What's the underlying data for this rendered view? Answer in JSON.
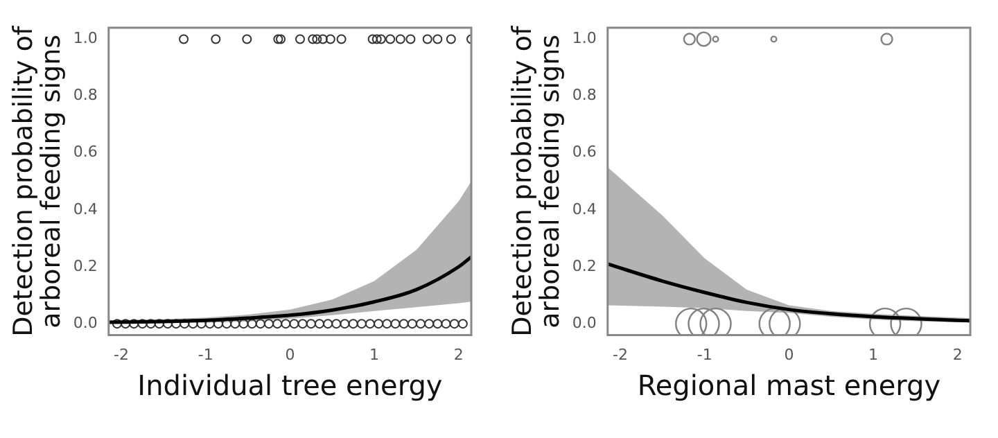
{
  "chart_data": [
    {
      "type": "line",
      "xlabel": "Individual tree energy",
      "ylabel": "Detection probability of arboreal feeding signs",
      "xlim": [
        -2.15,
        2.15
      ],
      "ylim": [
        -0.04,
        1.04
      ],
      "xticks": [
        -2,
        -1,
        0,
        1,
        2
      ],
      "yticks": [
        {
          "value": 0,
          "label": "0.0"
        },
        {
          "value": 0.2,
          "label": "0.2"
        },
        {
          "value": 0.4,
          "label": "0.4"
        },
        {
          "value": 0.6,
          "label": "0.6"
        },
        {
          "value": 0.8,
          "label": "0.8"
        },
        {
          "value": 1,
          "label": "1.0"
        }
      ],
      "grid": false,
      "legend": false,
      "series": [
        {
          "type": "line",
          "color": "#000000",
          "marker": "none",
          "x": [
            -2.15,
            -1.5,
            -1,
            -0.5,
            0,
            0.5,
            1,
            1.5,
            2,
            2.15
          ],
          "values": [
            0.005,
            0.008,
            0.012,
            0.02,
            0.03,
            0.048,
            0.077,
            0.12,
            0.2,
            0.235
          ],
          "lower": [
            0.001,
            0.002,
            0.004,
            0.008,
            0.018,
            0.03,
            0.045,
            0.058,
            0.072,
            0.078
          ],
          "upper": [
            0.012,
            0.016,
            0.022,
            0.032,
            0.05,
            0.085,
            0.15,
            0.26,
            0.43,
            0.5
          ]
        },
        {
          "type": "scatter",
          "color": "#333333",
          "marker": "circle",
          "x": [
            -1.26,
            -0.88,
            -0.51,
            -0.14,
            -0.11,
            0.12,
            0.27,
            0.32,
            0.39,
            0.48,
            0.61,
            0.98,
            1.03,
            1.08,
            1.19,
            1.31,
            1.43,
            1.63,
            1.75,
            1.91,
            2.15,
            -2.05,
            -1.95,
            -1.85,
            -1.75,
            -1.65,
            -1.55,
            -1.45,
            -1.35,
            -1.25,
            -1.15,
            -1.05,
            -0.95,
            -0.85,
            -0.75,
            -0.65,
            -0.55,
            -0.45,
            -0.35,
            -0.25,
            -0.15,
            -0.05,
            0.05,
            0.15,
            0.25,
            0.35,
            0.45,
            0.55,
            0.65,
            0.75,
            0.85,
            0.95,
            1.05,
            1.15,
            1.25,
            1.35,
            1.45,
            1.55,
            1.65,
            1.75,
            1.85,
            1.95,
            2.05
          ],
          "values": [
            1,
            1,
            1,
            1,
            1,
            1,
            1,
            1,
            1,
            1,
            1,
            1,
            1,
            1,
            1,
            1,
            1,
            1,
            1,
            1,
            1,
            0,
            0,
            0,
            0,
            0,
            0,
            0,
            0,
            0,
            0,
            0,
            0,
            0,
            0,
            0,
            0,
            0,
            0,
            0,
            0,
            0,
            0,
            0,
            0,
            0,
            0,
            0,
            0,
            0,
            0,
            0,
            0,
            0,
            0,
            0,
            0,
            0,
            0,
            0,
            0,
            0,
            0
          ]
        }
      ]
    },
    {
      "type": "line",
      "xlabel": "Regional mast energy",
      "ylabel": "Detection probability of arboreal feeding signs",
      "xlim": [
        -2.15,
        2.15
      ],
      "ylim": [
        -0.04,
        1.04
      ],
      "xticks": [
        -2,
        -1,
        0,
        1,
        2
      ],
      "yticks": [
        {
          "value": 0,
          "label": "0.0"
        },
        {
          "value": 0.2,
          "label": "0.2"
        },
        {
          "value": 0.4,
          "label": "0.4"
        },
        {
          "value": 0.6,
          "label": "0.6"
        },
        {
          "value": 0.8,
          "label": "0.8"
        },
        {
          "value": 1,
          "label": "1.0"
        }
      ],
      "grid": false,
      "legend": false,
      "series": [
        {
          "type": "line",
          "color": "#000000",
          "marker": "none",
          "x": [
            -2.15,
            -1.5,
            -1,
            -0.5,
            0,
            0.5,
            1,
            1.5,
            2,
            2.15
          ],
          "values": [
            0.21,
            0.15,
            0.11,
            0.075,
            0.05,
            0.035,
            0.025,
            0.018,
            0.012,
            0.011
          ],
          "lower": [
            0.065,
            0.06,
            0.055,
            0.045,
            0.038,
            0.025,
            0.015,
            0.009,
            0.005,
            0.004
          ],
          "upper": [
            0.55,
            0.38,
            0.23,
            0.12,
            0.065,
            0.045,
            0.035,
            0.028,
            0.022,
            0.02
          ]
        },
        {
          "type": "bubble",
          "color": "#808080",
          "marker": "circle",
          "x": [
            -1.18,
            -1.01,
            -0.87,
            -0.18,
            1.16,
            -1.16,
            -1.01,
            -0.87,
            -0.17,
            -0.05,
            1.14,
            1.39
          ],
          "values": [
            1,
            1,
            1,
            1,
            1,
            0,
            0,
            0,
            0,
            0,
            0,
            0
          ],
          "sizes": [
            0.13,
            0.2,
            0.03,
            0.03,
            0.13,
            1,
            1,
            1,
            1,
            1,
            1,
            1
          ]
        }
      ]
    }
  ]
}
